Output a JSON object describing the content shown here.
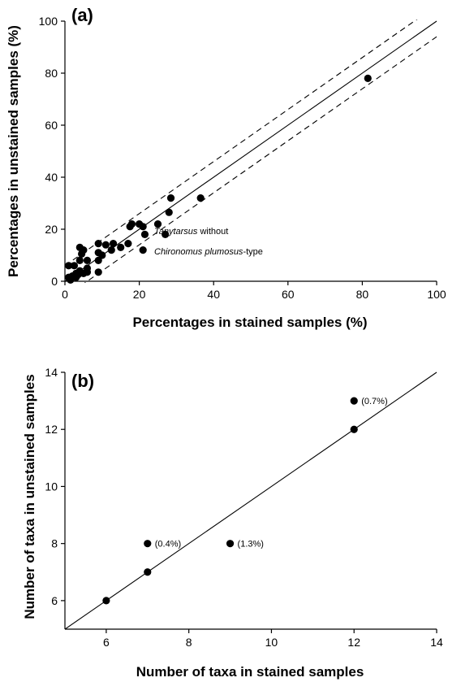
{
  "chart_data": [
    {
      "panel_label": "(a)",
      "type": "scatter",
      "xlabel": "Percentages in stained samples (%)",
      "ylabel": "Percentages in unstained samples (%)",
      "xlim": [
        0,
        100
      ],
      "ylim": [
        0,
        100
      ],
      "xticks": [
        "0",
        "20",
        "40",
        "60",
        "80",
        "100"
      ],
      "yticks": [
        "0",
        "20",
        "40",
        "60",
        "80",
        "100"
      ],
      "reference_lines": [
        {
          "style": "solid",
          "x": [
            0,
            100
          ],
          "y": [
            0,
            100
          ]
        },
        {
          "style": "dashed",
          "x": [
            0,
            100
          ],
          "y": [
            6,
            106
          ]
        },
        {
          "style": "dashed",
          "x": [
            0,
            100
          ],
          "y": [
            -6,
            94
          ]
        }
      ],
      "points": [
        {
          "x": 81.5,
          "y": 78
        },
        {
          "x": 36.5,
          "y": 32
        },
        {
          "x": 28.5,
          "y": 32
        },
        {
          "x": 28,
          "y": 26.5
        },
        {
          "x": 27,
          "y": 18
        },
        {
          "x": 25,
          "y": 22
        },
        {
          "x": 21.5,
          "y": 18
        },
        {
          "x": 21,
          "y": 21
        },
        {
          "x": 20,
          "y": 22
        },
        {
          "x": 18,
          "y": 22
        },
        {
          "x": 17.5,
          "y": 21
        },
        {
          "x": 17,
          "y": 14.5
        },
        {
          "x": 15,
          "y": 13
        },
        {
          "x": 13,
          "y": 14.5
        },
        {
          "x": 12.5,
          "y": 12
        },
        {
          "x": 11,
          "y": 14
        },
        {
          "x": 10,
          "y": 10
        },
        {
          "x": 9,
          "y": 14.5
        },
        {
          "x": 9,
          "y": 11
        },
        {
          "x": 9,
          "y": 8
        },
        {
          "x": 9,
          "y": 3.5
        },
        {
          "x": 21,
          "y": 12
        },
        {
          "x": 6,
          "y": 8
        },
        {
          "x": 6,
          "y": 5
        },
        {
          "x": 6,
          "y": 3.5
        },
        {
          "x": 5,
          "y": 12
        },
        {
          "x": 4.5,
          "y": 10.5
        },
        {
          "x": 4,
          "y": 13
        },
        {
          "x": 4,
          "y": 8
        },
        {
          "x": 4,
          "y": 4
        },
        {
          "x": 3.5,
          "y": 2.5
        },
        {
          "x": 3,
          "y": 3
        },
        {
          "x": 3,
          "y": 1.5
        },
        {
          "x": 2.5,
          "y": 6
        },
        {
          "x": 2,
          "y": 2
        },
        {
          "x": 1.5,
          "y": 0.5
        },
        {
          "x": 1,
          "y": 6
        },
        {
          "x": 1,
          "y": 1.5
        },
        {
          "x": 5,
          "y": 3
        }
      ],
      "annotations": [
        {
          "italic": "Tanytarsus",
          "rest": " without"
        },
        {
          "italic": "Chironomus plumosus",
          "rest": "-type"
        }
      ]
    },
    {
      "panel_label": "(b)",
      "type": "scatter",
      "xlabel": "Number of taxa in stained samples",
      "ylabel": "Number of taxa in unstained samples",
      "xlim": [
        5,
        14
      ],
      "ylim": [
        5,
        14
      ],
      "xticks": [
        "6",
        "8",
        "10",
        "12",
        "14"
      ],
      "yticks": [
        "6",
        "8",
        "10",
        "12",
        "14"
      ],
      "reference_lines": [
        {
          "style": "solid",
          "x": [
            5,
            14
          ],
          "y": [
            5,
            14
          ]
        }
      ],
      "points": [
        {
          "x": 6,
          "y": 6
        },
        {
          "x": 7,
          "y": 7
        },
        {
          "x": 7,
          "y": 8,
          "label": "(0.4%)"
        },
        {
          "x": 9,
          "y": 8,
          "label": "(1.3%)"
        },
        {
          "x": 12,
          "y": 12
        },
        {
          "x": 12,
          "y": 13,
          "label": "(0.7%)"
        }
      ]
    }
  ]
}
